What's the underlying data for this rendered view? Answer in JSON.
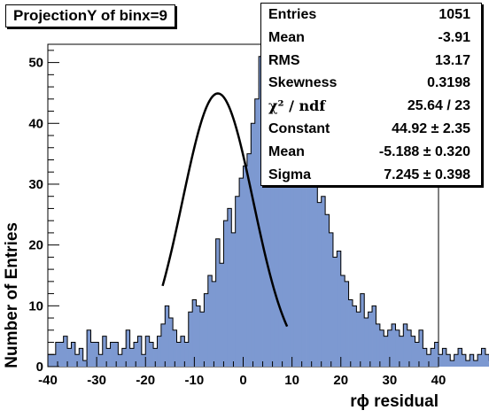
{
  "title": "ProjectionY of binx=9",
  "stats": [
    {
      "label": "Entries",
      "value": "1051"
    },
    {
      "label": "Mean",
      "value": "-3.91"
    },
    {
      "label": "RMS",
      "value": "13.17"
    },
    {
      "label": "Skewness",
      "value": "0.3198"
    },
    {
      "label": "χ² / ndf",
      "value": "25.64 / 23"
    },
    {
      "label": "Constant",
      "value": "44.92 ± 2.35"
    },
    {
      "label": "Mean",
      "value": "-5.188 ± 0.320"
    },
    {
      "label": "Sigma",
      "value": "7.245 ± 0.398"
    }
  ],
  "colors": {
    "fill": "#7d99d1",
    "line": "#000000",
    "fit": "#000000"
  },
  "chart_data": {
    "type": "bar",
    "title": "ProjectionY of binx=9",
    "xlabel": "rϕ residual",
    "ylabel": "Number of Entries",
    "xlim": [
      -40,
      40
    ],
    "ylim": [
      0,
      53
    ],
    "bin_width": 0.8,
    "x_ticks": [
      -40,
      -30,
      -20,
      -10,
      0,
      10,
      20,
      30,
      40
    ],
    "y_ticks": [
      0,
      10,
      20,
      30,
      40,
      50
    ],
    "values": [
      2,
      2,
      4,
      4,
      5,
      3,
      4,
      2,
      3,
      1,
      6,
      4,
      4,
      2,
      5,
      3,
      4,
      4,
      2,
      3,
      6,
      3,
      4,
      5,
      2,
      5,
      4,
      3,
      5,
      7,
      10,
      8,
      6,
      4,
      5,
      4,
      9,
      11,
      10,
      9,
      12,
      15,
      14,
      21,
      17,
      24,
      26,
      22,
      28,
      31,
      33,
      35,
      40,
      44,
      51,
      46,
      50,
      48,
      42,
      51,
      47,
      43,
      40,
      39,
      37,
      35,
      33,
      36,
      30,
      27,
      28,
      25,
      22,
      18,
      19,
      15,
      14,
      11,
      10,
      9,
      12,
      8,
      9,
      10,
      7,
      6,
      5,
      6,
      7,
      6,
      5,
      7,
      6,
      5,
      4,
      6,
      3,
      2,
      3,
      4,
      2,
      3,
      2,
      1,
      2,
      3,
      2,
      1,
      2,
      1,
      2,
      3,
      2,
      1,
      2,
      1,
      2,
      1,
      2,
      2
    ],
    "fit": {
      "function": "gaus",
      "constant": 44.92,
      "mean": -5.188,
      "sigma": 7.245,
      "x_range": [
        -16.5,
        9.0
      ]
    }
  }
}
